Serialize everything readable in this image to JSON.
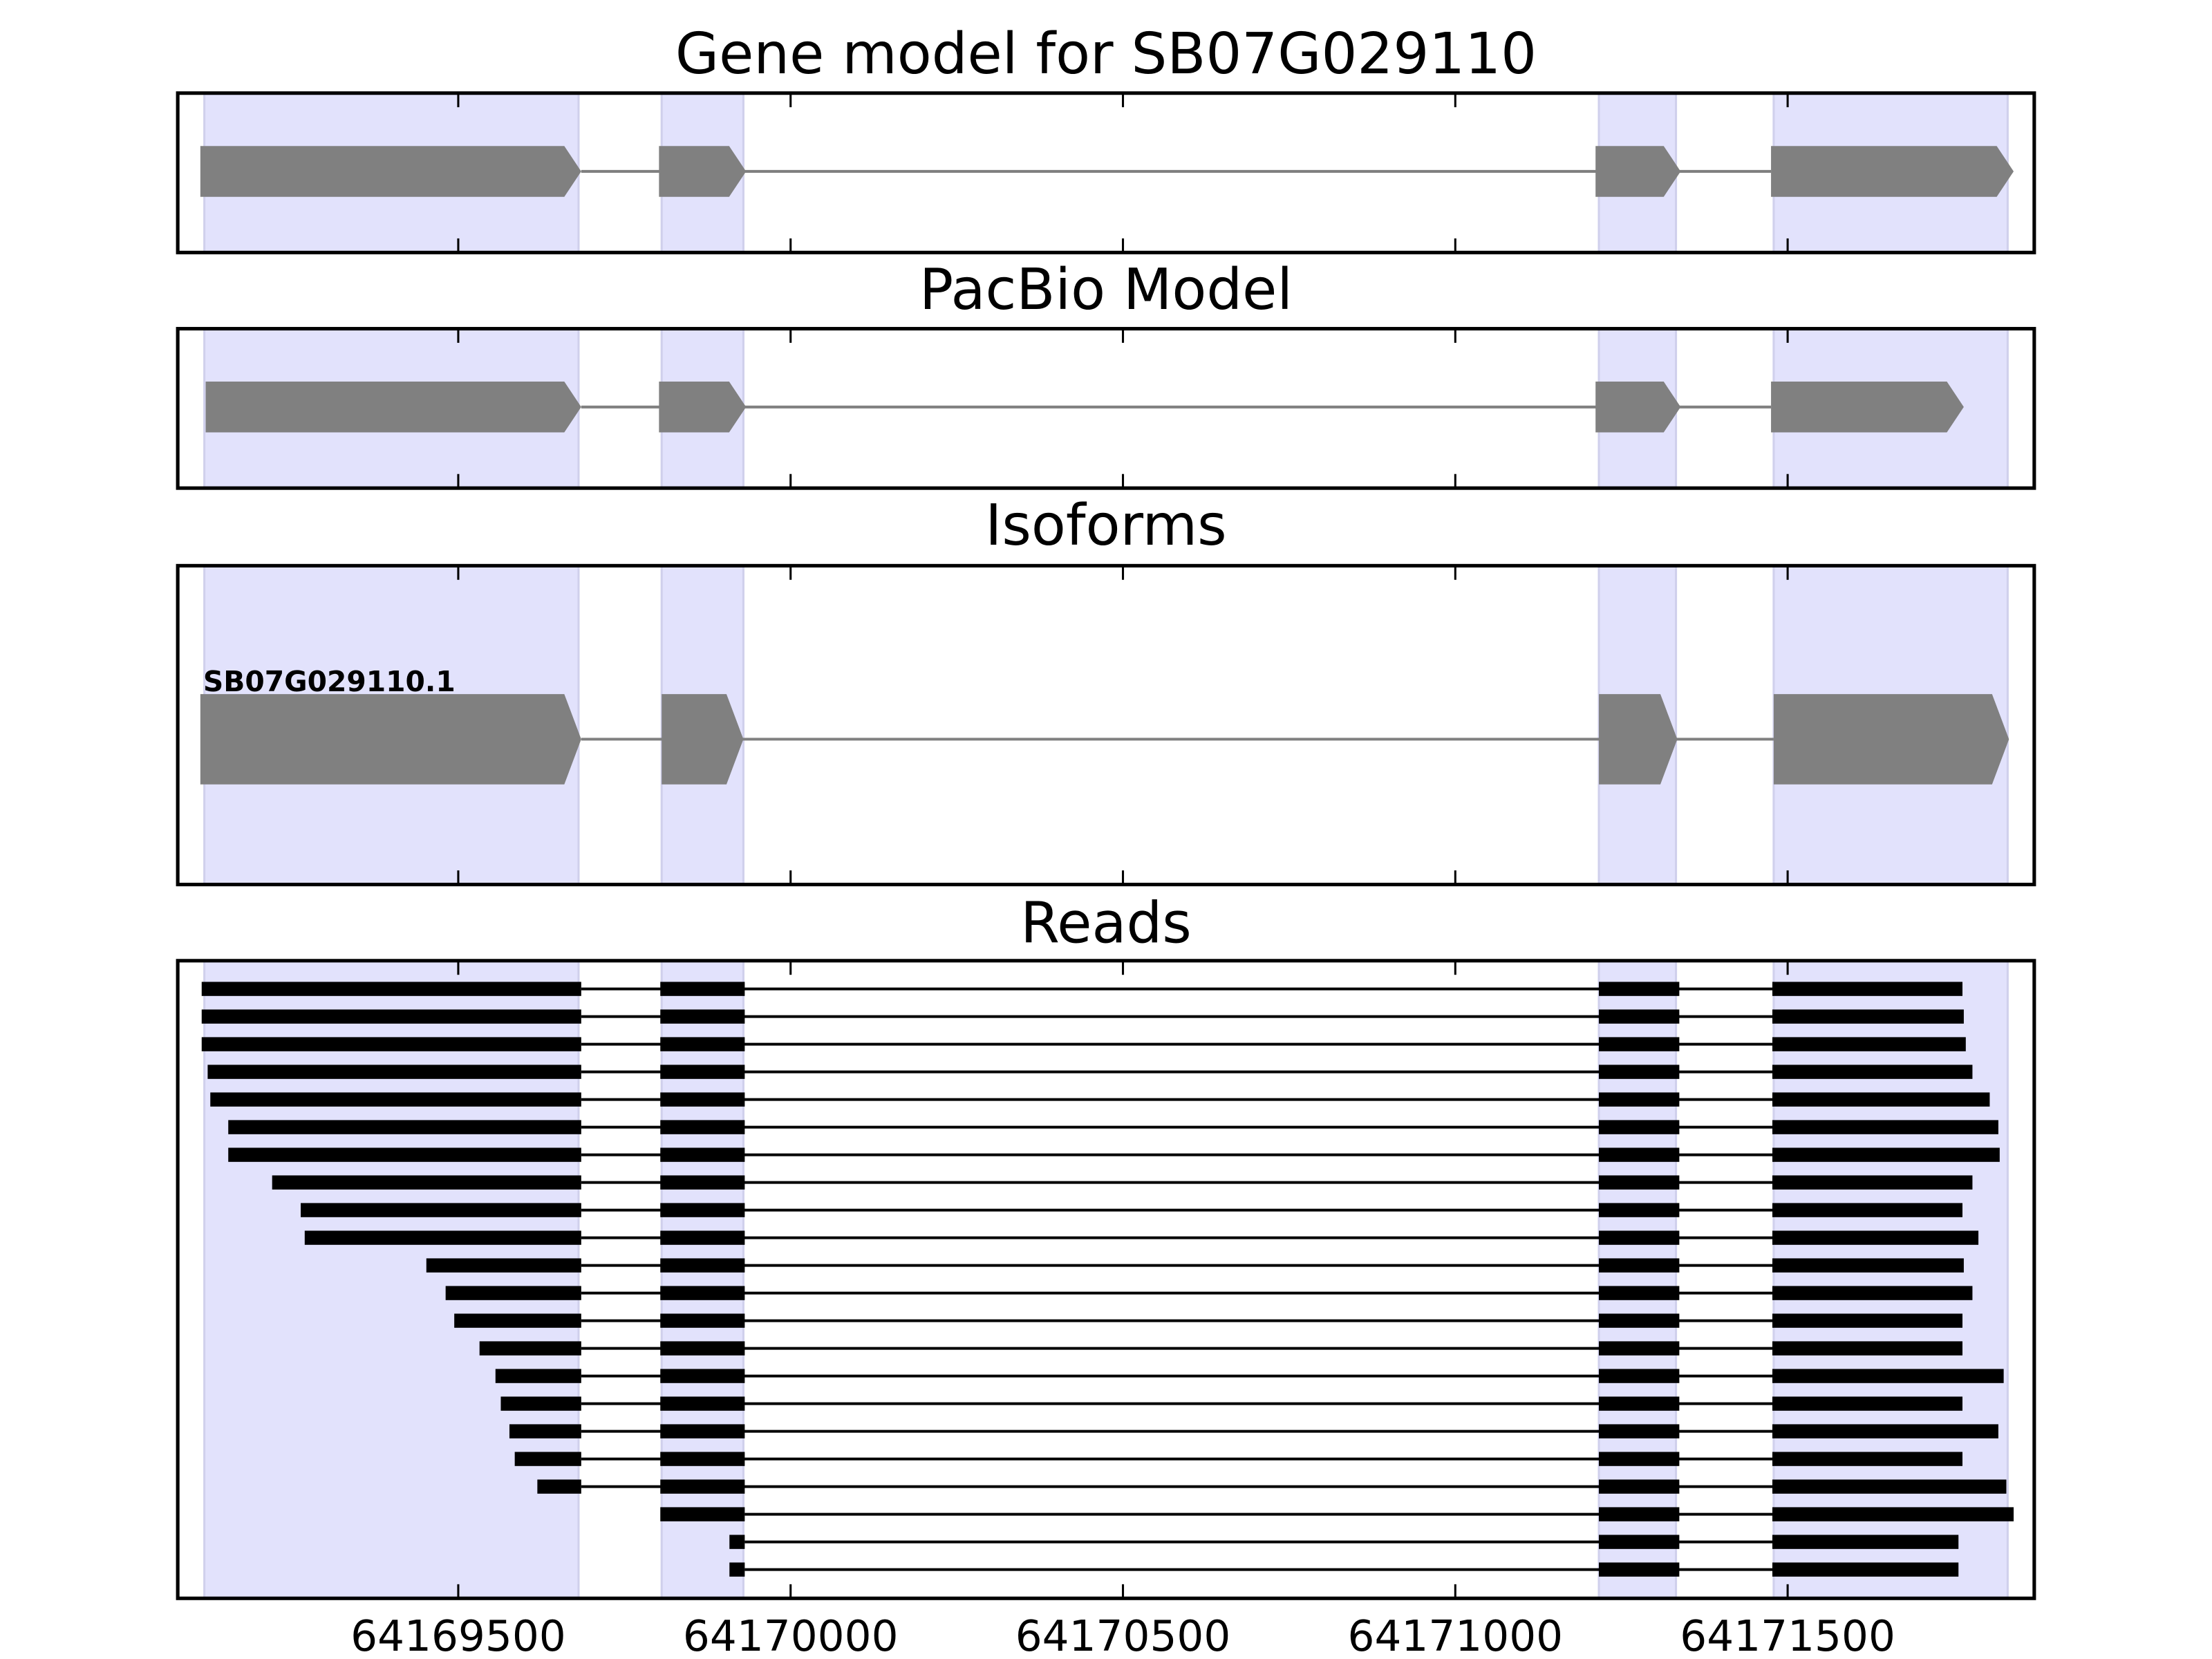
{
  "chart_data": {
    "type": "gene-track",
    "xlim": [
      64169078,
      64171871
    ],
    "xticks": [
      64169500,
      64170000,
      64170500,
      64171000,
      64171500
    ],
    "xtick_labels": [
      "64169500",
      "64170000",
      "64170500",
      "64171000",
      "64171500"
    ],
    "shaded_regions": [
      [
        64169118,
        64169681
      ],
      [
        64169806,
        64169929
      ],
      [
        64171216,
        64171332
      ],
      [
        64171479,
        64171831
      ]
    ],
    "colors": {
      "shade": "#e2e2fc",
      "feature": "#808080",
      "read": "#000000"
    },
    "panels": [
      {
        "title": "Gene model for SB07G029110",
        "models": [
          {
            "label": "",
            "exons": [
              [
                64169112,
                64169685
              ],
              [
                64169802,
                64169933
              ],
              [
                64171211,
                64171339
              ],
              [
                64171475,
                64171840
              ]
            ]
          }
        ]
      },
      {
        "title": "PacBio Model",
        "models": [
          {
            "label": "",
            "exons": [
              [
                64169120,
                64169685
              ],
              [
                64169802,
                64169933
              ],
              [
                64171211,
                64171339
              ],
              [
                64171475,
                64171765
              ]
            ]
          }
        ]
      },
      {
        "title": "Isoforms",
        "models": [
          {
            "label": "SB07G029110.1",
            "exons": [
              [
                64169112,
                64169685
              ],
              [
                64169806,
                64169929
              ],
              [
                64171216,
                64171334
              ],
              [
                64171479,
                64171833
              ]
            ]
          }
        ]
      },
      {
        "title": "Reads",
        "reads": [
          [
            64169114,
            64171763
          ],
          [
            64169114,
            64171765
          ],
          [
            64169114,
            64171768
          ],
          [
            64169123,
            64171778
          ],
          [
            64169127,
            64171804
          ],
          [
            64169154,
            64171817
          ],
          [
            64169154,
            64171819
          ],
          [
            64169220,
            64171778
          ],
          [
            64169263,
            64171763
          ],
          [
            64169269,
            64171787
          ],
          [
            64169452,
            64171765
          ],
          [
            64169481,
            64171778
          ],
          [
            64169494,
            64171763
          ],
          [
            64169532,
            64171763
          ],
          [
            64169556,
            64171825
          ],
          [
            64169564,
            64171763
          ],
          [
            64169577,
            64171817
          ],
          [
            64169585,
            64171763
          ],
          [
            64169619,
            64171829
          ],
          [
            64169800,
            64171840
          ],
          [
            64169908,
            64171757
          ],
          [
            64169908,
            64171757
          ]
        ],
        "read_exon_template": [
          [
            null,
            64169685
          ],
          [
            64169804,
            64169931
          ],
          [
            64171216,
            64171337
          ],
          [
            64171477,
            null
          ]
        ]
      }
    ]
  }
}
